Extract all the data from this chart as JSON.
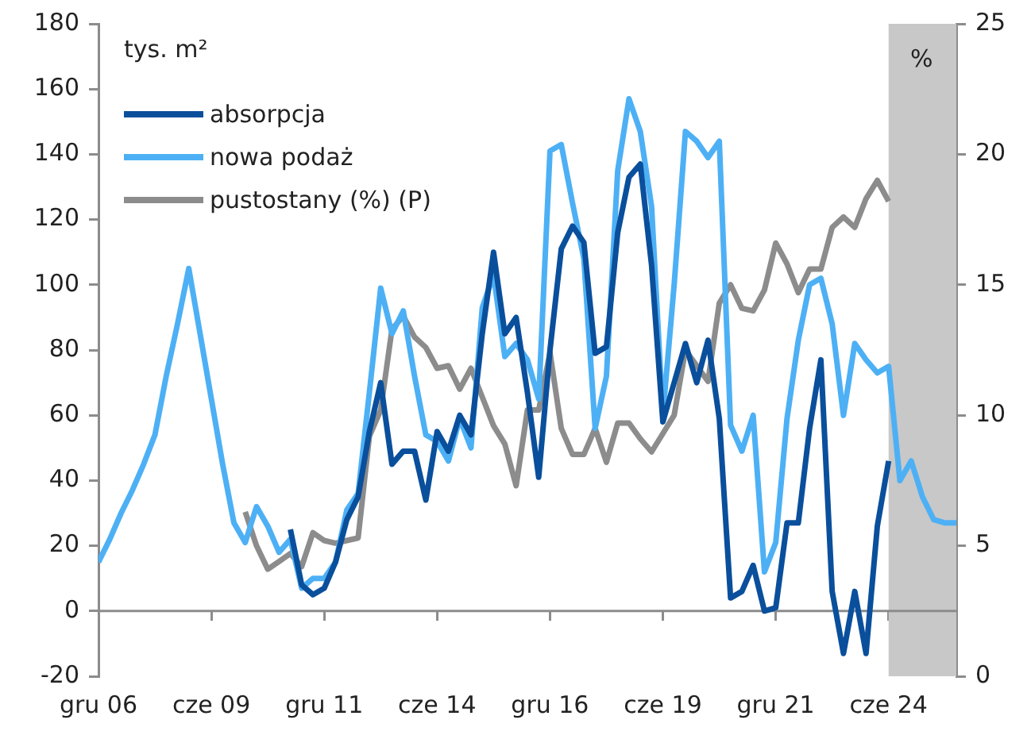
{
  "chart_data": {
    "type": "line",
    "ylabel": "tys. m²",
    "y2label": "%",
    "x": [
      "2006-12",
      "2007-03",
      "2007-06",
      "2007-09",
      "2007-12",
      "2008-03",
      "2008-06",
      "2008-09",
      "2008-12",
      "2009-03",
      "2009-06",
      "2009-09",
      "2009-12",
      "2010-03",
      "2010-06",
      "2010-09",
      "2010-12",
      "2011-03",
      "2011-06",
      "2011-09",
      "2011-12",
      "2012-03",
      "2012-06",
      "2012-09",
      "2012-12",
      "2013-03",
      "2013-06",
      "2013-09",
      "2013-12",
      "2014-03",
      "2014-06",
      "2014-09",
      "2014-12",
      "2015-03",
      "2015-06",
      "2015-09",
      "2015-12",
      "2016-03",
      "2016-06",
      "2016-09",
      "2016-12",
      "2017-03",
      "2017-06",
      "2017-09",
      "2017-12",
      "2018-03",
      "2018-06",
      "2018-09",
      "2018-12",
      "2019-03",
      "2019-06",
      "2019-09",
      "2019-12",
      "2020-03",
      "2020-06",
      "2020-09",
      "2020-12",
      "2021-03",
      "2021-06",
      "2021-09",
      "2021-12",
      "2022-03",
      "2022-06",
      "2022-09",
      "2022-12",
      "2023-03",
      "2023-06",
      "2023-09",
      "2023-12",
      "2024-03",
      "2024-06",
      "2024-09",
      "2024-12",
      "2025-03",
      "2025-06",
      "2025-09",
      "2025-12"
    ],
    "series": [
      {
        "name": "absorpcja",
        "color": "#0a4f9c",
        "values": [
          null,
          null,
          null,
          null,
          null,
          null,
          null,
          null,
          null,
          null,
          null,
          null,
          null,
          null,
          null,
          null,
          null,
          25,
          8,
          5,
          7,
          15,
          28,
          35,
          55,
          70,
          45,
          49,
          49,
          34,
          55,
          49,
          60,
          54,
          85,
          110,
          85,
          90,
          67,
          41,
          80,
          111,
          118,
          113,
          79,
          81,
          116,
          133,
          137,
          106,
          58,
          70,
          82,
          70,
          83,
          59,
          4,
          6,
          14,
          0,
          1,
          27,
          27,
          56,
          77,
          6,
          -13,
          6,
          -13,
          26,
          46,
          null,
          null,
          null,
          null,
          null,
          null
        ]
      },
      {
        "name": "nowa podaż",
        "color": "#4db0f5",
        "values": [
          15,
          22,
          30,
          37,
          45,
          54,
          72,
          88,
          105,
          85,
          65,
          45,
          27,
          21,
          32,
          26,
          18,
          22,
          7,
          10,
          10,
          15,
          31,
          36,
          67,
          99,
          85,
          92,
          72,
          54,
          52,
          46,
          59,
          50,
          93,
          103,
          78,
          82,
          77,
          65,
          141,
          143,
          125,
          108,
          56,
          72,
          135,
          157,
          147,
          124,
          60,
          100,
          147,
          144,
          139,
          144,
          57,
          49,
          60,
          12,
          21,
          59,
          83,
          100,
          102,
          88,
          60,
          82,
          77,
          73,
          75,
          40,
          46,
          35,
          28,
          27,
          27
        ]
      },
      {
        "name": "pustostany (%) (P)",
        "color": "#8c8c8c",
        "axis": "y2",
        "values": [
          null,
          null,
          null,
          null,
          null,
          null,
          null,
          null,
          null,
          null,
          null,
          null,
          null,
          6.3,
          5.0,
          4.1,
          4.4,
          4.7,
          4.2,
          5.5,
          5.2,
          5.1,
          5.2,
          5.3,
          9.2,
          10.2,
          13.3,
          13.8,
          13.0,
          12.6,
          11.8,
          11.9,
          11.0,
          11.8,
          10.7,
          9.6,
          8.9,
          7.3,
          10.2,
          10.2,
          12.4,
          9.5,
          8.5,
          8.5,
          9.5,
          8.2,
          9.7,
          9.7,
          9.1,
          8.6,
          9.3,
          10.0,
          12.5,
          11.9,
          11.3,
          14.3,
          15.0,
          14.1,
          14.0,
          14.8,
          16.6,
          15.8,
          14.7,
          15.6,
          15.6,
          17.2,
          17.6,
          17.2,
          18.3,
          19.0,
          18.2,
          null,
          null,
          null,
          null,
          null,
          null
        ]
      }
    ],
    "xlim": [
      "2006-12",
      "2025-12"
    ],
    "xticks": [
      {
        "value": "2006-12",
        "label": "gru 06"
      },
      {
        "value": "2009-06",
        "label": "cze 09"
      },
      {
        "value": "2011-12",
        "label": "gru 11"
      },
      {
        "value": "2014-06",
        "label": "cze 14"
      },
      {
        "value": "2016-12",
        "label": "gru 16"
      },
      {
        "value": "2019-06",
        "label": "cze 19"
      },
      {
        "value": "2021-12",
        "label": "gru 21"
      },
      {
        "value": "2024-06",
        "label": "cze 24"
      }
    ],
    "ylim": [
      -20,
      180
    ],
    "yticks": [
      -20,
      0,
      20,
      40,
      60,
      80,
      100,
      120,
      140,
      160,
      180
    ],
    "y2lim": [
      0,
      25
    ],
    "y2ticks": [
      0,
      5,
      10,
      15,
      20,
      25
    ],
    "ref_lines": [
      {
        "axis": "y",
        "value": 0,
        "color": "#8c8c8c"
      }
    ],
    "bands": [
      {
        "axis": "x",
        "from": "2024-06",
        "to": "2025-12",
        "color": "#c8c8c8"
      }
    ],
    "legend": "top left",
    "grid": false,
    "marker": "none",
    "line_style": "solid"
  }
}
